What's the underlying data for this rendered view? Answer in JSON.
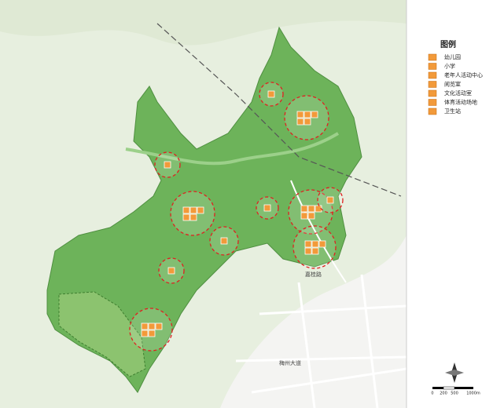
{
  "legend": {
    "title": "图例",
    "items": [
      "幼儿园",
      "小学",
      "老年人活动中心",
      "阅览室",
      "文化活动室",
      "体育活动场地",
      "卫生站"
    ]
  },
  "map_labels": {
    "road_1": "梅州大道",
    "road_2": "嘉桂路"
  },
  "scale": {
    "ticks": [
      "0",
      "200",
      "500",
      "1000m"
    ]
  }
}
